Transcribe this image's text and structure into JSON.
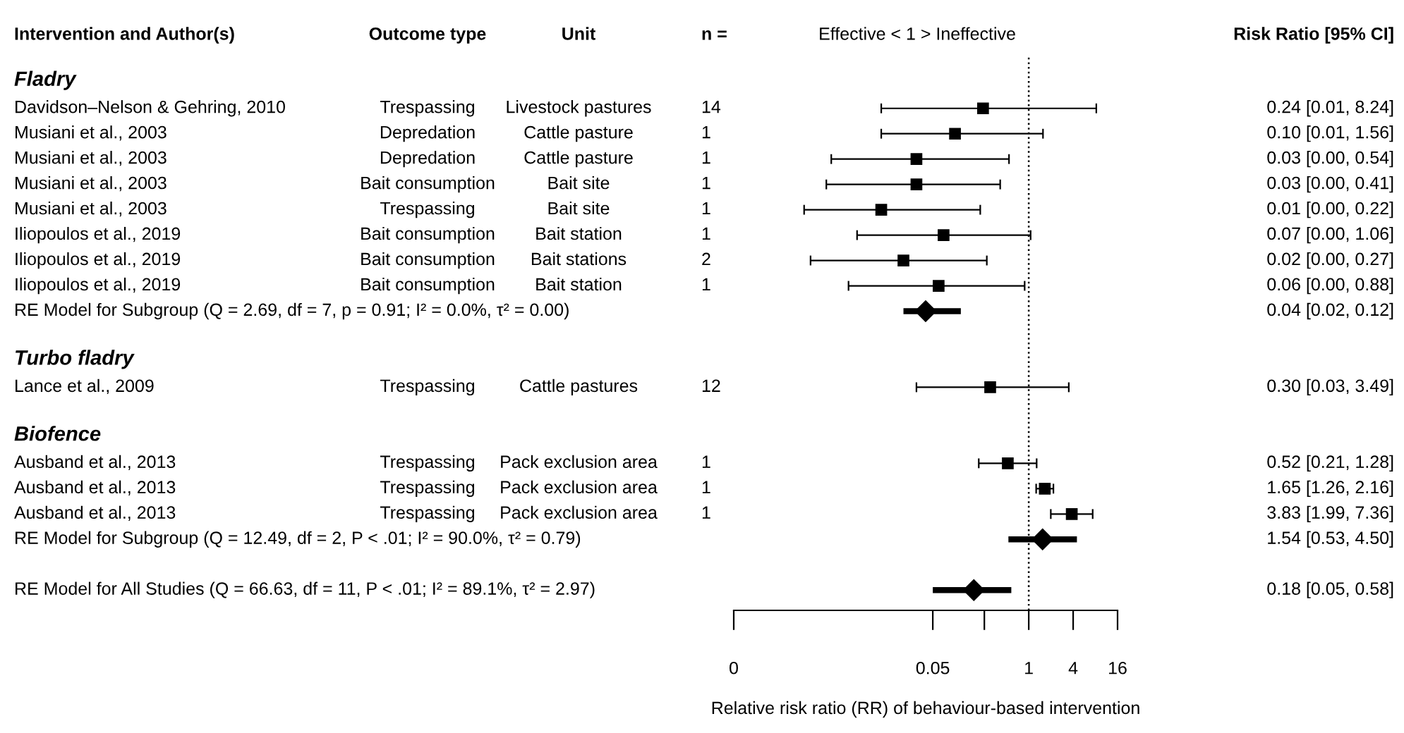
{
  "chart_data": {
    "type": "scatter",
    "orientation": "horizontal",
    "log": "x",
    "xlabel": "Relative risk ratio (RR) of behaviour‐based intervention",
    "categories": [
      "Fladry",
      "Davidson–Nelson & Gehring, 2010",
      "Musiani et al., 2003",
      "Musiani et al., 2003",
      "Musiani et al., 2003",
      "Musiani et al., 2003",
      "Iliopoulos et al., 2019",
      "Iliopoulos et al., 2019",
      "Iliopoulos et al., 2019",
      "RE Model for Subgroup (Q = 2.69, df = 7, p = 0.91; I² = 0.0%, τ² = 0.00)",
      null,
      "Turbo fladry",
      "Lance et al., 2009",
      null,
      "Biofence",
      "Ausband et al., 2013",
      "Ausband et al., 2013",
      "Ausband et al., 2013",
      "RE Model for Subgroup (Q = 12.49, df = 2, P < .01; I² = 90.0%, τ² = 0.79)",
      null,
      "RE Model for All Studies (Q = 66.63, df = 11, P < .01; I² = 89.1%, τ² = 2.97)"
    ],
    "series": [
      {
        "marker": "square",
        "color": "#000000",
        "values": [
          null,
          0.24,
          0.1,
          0.03,
          0.03,
          0.01,
          0.07,
          0.02,
          0.06,
          null,
          null,
          null,
          0.3,
          null,
          null,
          0.52,
          1.65,
          3.83,
          null,
          null,
          null
        ],
        "errors": [
          null,
          [
            0.01,
            8.24
          ],
          [
            0.01,
            1.56
          ],
          [
            0.0021,
            0.54
          ],
          [
            0.0018,
            0.41
          ],
          [
            0.0009,
            0.22
          ],
          [
            0.0047,
            1.06
          ],
          [
            0.0011,
            0.27
          ],
          [
            0.0036,
            0.88
          ],
          null,
          null,
          null,
          [
            0.03,
            3.49
          ],
          null,
          null,
          [
            0.21,
            1.28
          ],
          [
            1.26,
            2.16
          ],
          [
            1.99,
            7.36
          ],
          null,
          null,
          null
        ]
      },
      {
        "marker": "diamond",
        "color": "#000000",
        "values": [
          null,
          null,
          null,
          null,
          null,
          null,
          null,
          null,
          null,
          0.04,
          null,
          null,
          null,
          null,
          null,
          null,
          null,
          null,
          1.54,
          null,
          0.18
        ],
        "errors": [
          null,
          null,
          null,
          null,
          null,
          null,
          null,
          null,
          null,
          [
            0.02,
            0.12
          ],
          null,
          null,
          null,
          null,
          null,
          null,
          null,
          null,
          [
            0.53,
            4.5
          ],
          null,
          [
            0.05,
            0.58
          ]
        ]
      }
    ],
    "value_labels": [
      null,
      "0.24 [0.01, 8.24]",
      "0.10 [0.01, 1.56]",
      "0.03 [0.00, 0.54]",
      "0.03 [0.00, 0.41]",
      "0.01 [0.00, 0.22]",
      "0.07 [0.00, 1.06]",
      "0.02 [0.00, 0.27]",
      "0.06 [0.00, 0.88]",
      "0.04 [0.02, 0.12]",
      null,
      null,
      "0.30 [0.03, 3.49]",
      null,
      null,
      "0.52 [0.21, 1.28]",
      "1.65 [1.26, 2.16]",
      "3.83 [1.99, 7.36]",
      "1.54 [0.53, 4.50]",
      null,
      "0.18 [0.05, 0.58]"
    ],
    "xlim": [
      0.0001,
      16
    ],
    "xticks": [
      {
        "value": 0.0001,
        "label": "0"
      },
      0.05,
      {
        "value": 0.25,
        "label": null
      },
      1,
      4,
      16
    ],
    "ref_lines": [
      {
        "axis": "x",
        "value": 1,
        "line_style": "dotted",
        "color": "#000000"
      }
    ],
    "grid": false,
    "legend": false,
    "annotations": [
      "Intervention and Author(s)",
      "Outcome type",
      "Unit",
      "n =",
      "Effective < 1 > Ineffective",
      "Risk Ratio [95% CI]",
      "Trespassing",
      "Livestock pastures",
      "14",
      "Depredation",
      "Cattle pasture",
      "1",
      "Depredation",
      "Cattle pasture",
      "1",
      "Bait consumption",
      "Bait site",
      "1",
      "Trespassing",
      "Bait site",
      "1",
      "Bait consumption",
      "Bait station",
      "1",
      "Bait consumption",
      "Bait stations",
      "2",
      "Bait consumption",
      "Bait station",
      "1",
      "Trespassing",
      "Cattle pastures",
      "12",
      "Trespassing",
      "Pack exclusion area",
      "1",
      "Trespassing",
      "Pack exclusion area",
      "1",
      "Trespassing",
      "Pack exclusion area",
      "1"
    ]
  }
}
